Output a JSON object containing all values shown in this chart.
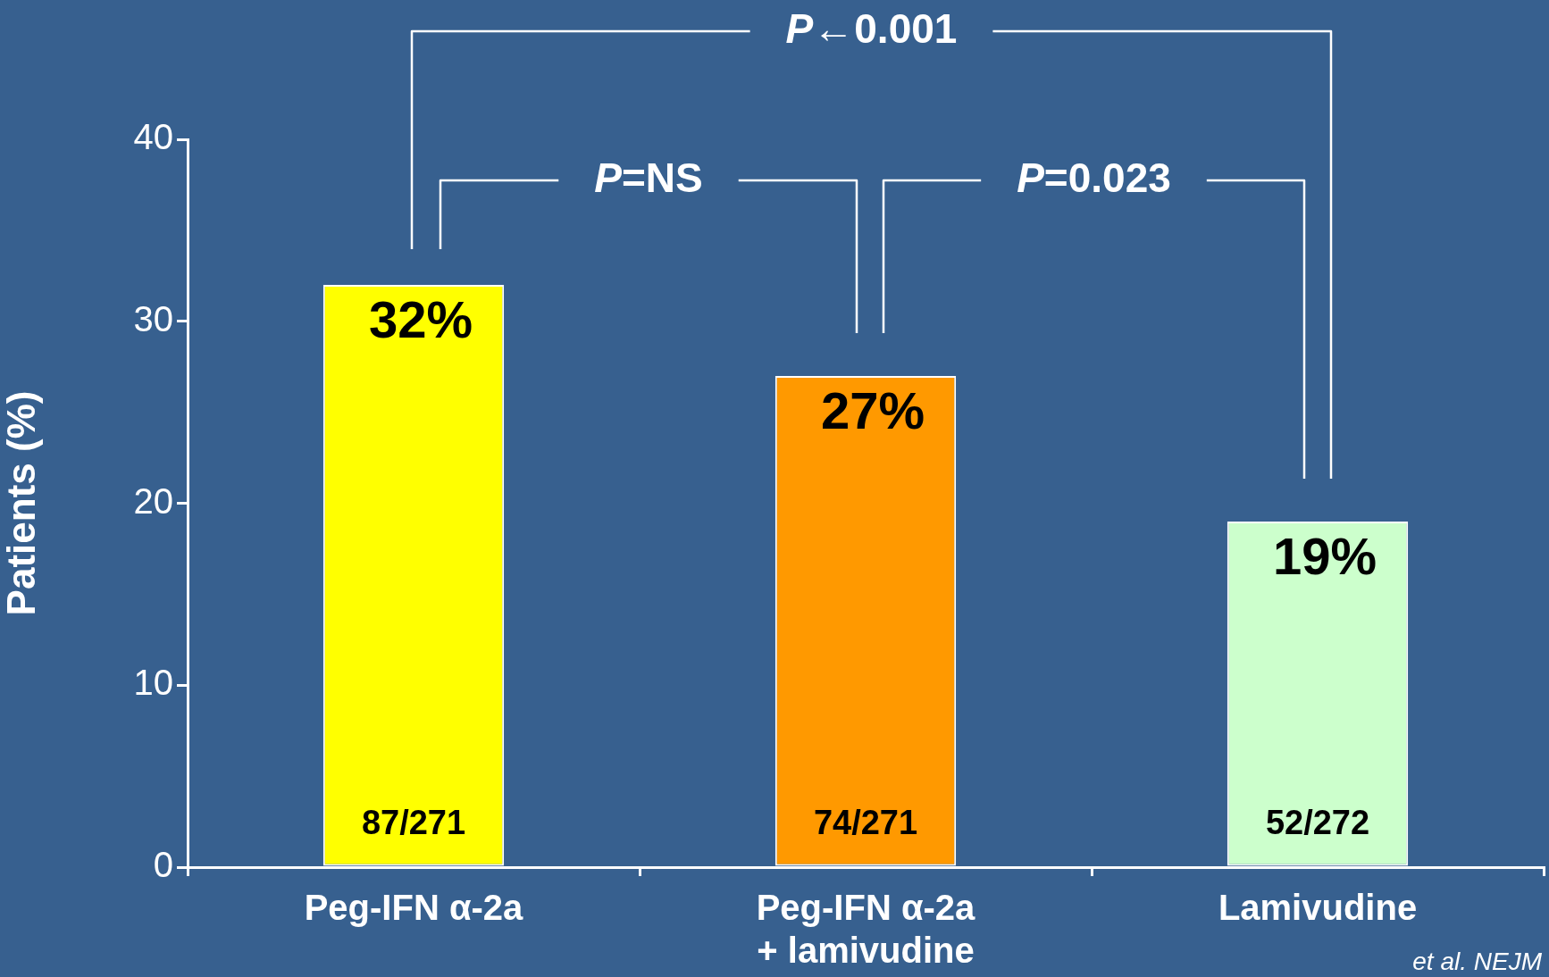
{
  "chart_data": {
    "type": "bar",
    "ylabel": "Patients (%)",
    "categories": [
      "Peg-IFN α-2a",
      "Peg-IFN α-2a\n+ lamivudine",
      "Lamivudine"
    ],
    "values": [
      32,
      27,
      19
    ],
    "colors": [
      "#ffff00",
      "#ff9900",
      "#ccffcc"
    ],
    "value_labels": [
      "32%",
      "27%",
      "19%"
    ],
    "ylim": [
      0,
      40
    ],
    "yticks": [
      0,
      10,
      20,
      30,
      40
    ],
    "grid": false,
    "legend": false,
    "annotations": [
      "P←0.001",
      "P=NS",
      "P=0.023",
      {
        "text": "87/271",
        "x": "Peg-IFN α-2a",
        "y": 0
      },
      {
        "text": "74/271",
        "x": "Peg-IFN α-2a\n+ lamivudine",
        "y": 0
      },
      {
        "text": "52/272",
        "x": "Lamivudine",
        "y": 0
      },
      "et al. NEJM"
    ]
  }
}
